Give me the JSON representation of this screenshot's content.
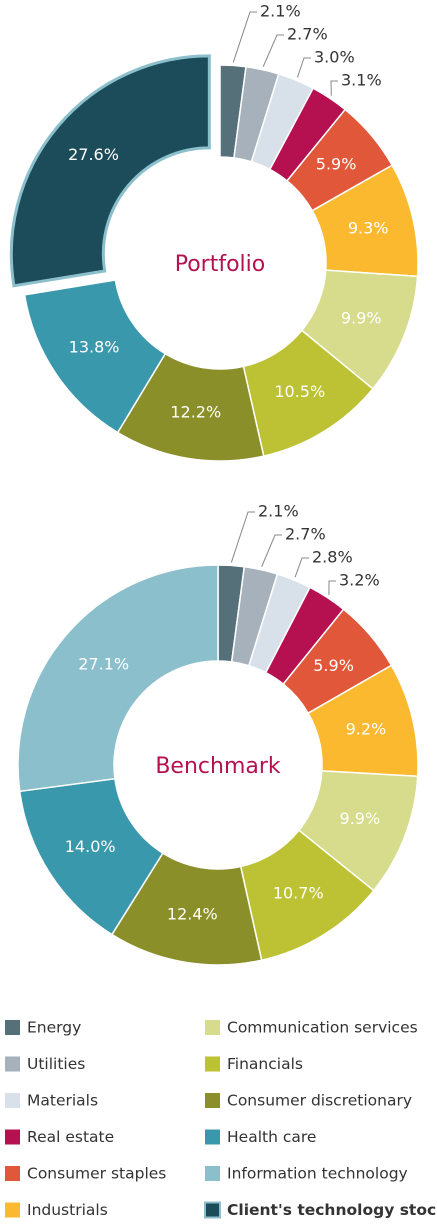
{
  "chart_data": [
    {
      "type": "donut",
      "center_label": "Portfolio",
      "categories": [
        "Energy",
        "Utilities",
        "Materials",
        "Real estate",
        "Consumer staples",
        "Industrials",
        "Communication services",
        "Financials",
        "Consumer discretionary",
        "Health care",
        "Client's technology stock"
      ],
      "values": [
        2.1,
        2.7,
        3.0,
        3.1,
        5.9,
        9.3,
        9.9,
        10.5,
        12.2,
        13.8,
        27.6
      ],
      "value_labels": [
        "2.1%",
        "2.7%",
        "3.0%",
        "3.1%",
        "5.9%",
        "9.3%",
        "9.9%",
        "10.5%",
        "12.2%",
        "13.8%",
        "27.6%"
      ],
      "colors": [
        "#56707a",
        "#a7b1bb",
        "#d8e1ea",
        "#b5104f",
        "#e0573a",
        "#fbb92f",
        "#d6dc8b",
        "#bcc233",
        "#8a8f2a",
        "#3a98ac",
        "#1c4b59"
      ],
      "explode_index": 10
    },
    {
      "type": "donut",
      "center_label": "Benchmark",
      "categories": [
        "Energy",
        "Utilities",
        "Materials",
        "Real estate",
        "Consumer staples",
        "Industrials",
        "Communication services",
        "Financials",
        "Consumer discretionary",
        "Health care",
        "Information technology"
      ],
      "values": [
        2.1,
        2.7,
        2.8,
        3.2,
        5.9,
        9.2,
        9.9,
        10.7,
        12.4,
        14.0,
        27.1
      ],
      "value_labels": [
        "2.1%",
        "2.7%",
        "2.8%",
        "3.2%",
        "5.9%",
        "9.2%",
        "9.9%",
        "10.7%",
        "12.4%",
        "14.0%",
        "27.1%"
      ],
      "colors": [
        "#56707a",
        "#a7b1bb",
        "#d8e1ea",
        "#b5104f",
        "#e0573a",
        "#fbb92f",
        "#d6dc8b",
        "#bcc233",
        "#8a8f2a",
        "#3a98ac",
        "#8bbfcc"
      ]
    }
  ]
}
